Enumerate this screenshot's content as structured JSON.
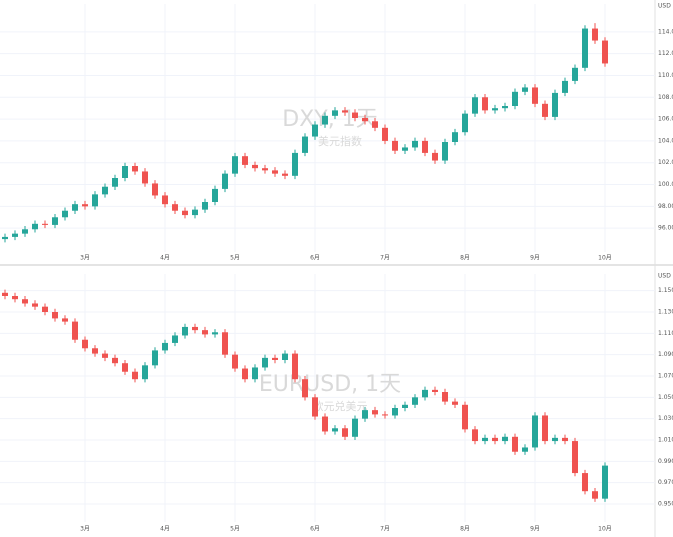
{
  "chart_data": [
    {
      "type": "candlestick",
      "title": "DXY, 1天",
      "subtitle": "美元指数",
      "currency": "USD",
      "up_color": "#26a69a",
      "down_color": "#ef5350",
      "grid": true,
      "ylim": [
        94,
        116
      ],
      "yticks": [
        {
          "value": 96,
          "label": "96.000"
        },
        {
          "value": 98,
          "label": "98.000"
        },
        {
          "value": 100,
          "label": "100.000"
        },
        {
          "value": 102,
          "label": "102.000"
        },
        {
          "value": 104,
          "label": "104.000"
        },
        {
          "value": 106,
          "label": "106.000"
        },
        {
          "value": 108,
          "label": "108.000"
        },
        {
          "value": 110,
          "label": "110.000"
        },
        {
          "value": 112,
          "label": "112.000"
        },
        {
          "value": 114,
          "label": "114.000"
        }
      ],
      "xticks": [
        {
          "value": 8,
          "label": "3月"
        },
        {
          "value": 16,
          "label": "4月"
        },
        {
          "value": 23,
          "label": "5月"
        },
        {
          "value": 31,
          "label": "6月"
        },
        {
          "value": 38,
          "label": "7月"
        },
        {
          "value": 46,
          "label": "8月"
        },
        {
          "value": 53,
          "label": "9月"
        },
        {
          "value": 60,
          "label": "10月"
        }
      ],
      "ohlc": [
        [
          95.0,
          95.5,
          94.7,
          95.2
        ],
        [
          95.2,
          95.8,
          94.9,
          95.5
        ],
        [
          95.5,
          96.2,
          95.2,
          95.9
        ],
        [
          95.9,
          96.7,
          95.6,
          96.4
        ],
        [
          96.4,
          96.7,
          96.0,
          96.3
        ],
        [
          96.3,
          97.3,
          96.0,
          97.0
        ],
        [
          97.0,
          97.9,
          96.7,
          97.6
        ],
        [
          97.6,
          98.5,
          97.3,
          98.2
        ],
        [
          98.2,
          98.5,
          97.7,
          98.0
        ],
        [
          98.0,
          99.4,
          97.7,
          99.1
        ],
        [
          99.1,
          100.1,
          98.8,
          99.8
        ],
        [
          99.8,
          100.9,
          99.5,
          100.6
        ],
        [
          100.6,
          102.0,
          100.3,
          101.7
        ],
        [
          101.7,
          102.0,
          100.9,
          101.2
        ],
        [
          101.2,
          101.5,
          99.8,
          100.1
        ],
        [
          100.1,
          100.4,
          98.7,
          99.0
        ],
        [
          99.0,
          99.3,
          97.9,
          98.2
        ],
        [
          98.2,
          98.5,
          97.3,
          97.6
        ],
        [
          97.6,
          97.9,
          96.9,
          97.2
        ],
        [
          97.2,
          98.0,
          96.9,
          97.7
        ],
        [
          97.7,
          98.7,
          97.4,
          98.4
        ],
        [
          98.4,
          99.9,
          98.1,
          99.6
        ],
        [
          99.6,
          101.3,
          99.3,
          101.0
        ],
        [
          101.0,
          102.9,
          100.7,
          102.6
        ],
        [
          102.6,
          102.9,
          101.5,
          101.8
        ],
        [
          101.8,
          102.1,
          101.2,
          101.5
        ],
        [
          101.5,
          101.8,
          101.0,
          101.3
        ],
        [
          101.3,
          101.6,
          100.7,
          101.0
        ],
        [
          101.0,
          101.3,
          100.5,
          100.8
        ],
        [
          100.8,
          103.2,
          100.5,
          102.9
        ],
        [
          102.9,
          104.7,
          102.6,
          104.4
        ],
        [
          104.4,
          105.8,
          104.1,
          105.5
        ],
        [
          105.5,
          106.6,
          105.2,
          106.3
        ],
        [
          106.3,
          107.1,
          106.0,
          106.8
        ],
        [
          106.8,
          107.1,
          106.3,
          106.6
        ],
        [
          106.6,
          106.9,
          105.8,
          106.1
        ],
        [
          106.1,
          106.4,
          105.5,
          105.8
        ],
        [
          105.8,
          106.1,
          104.9,
          105.2
        ],
        [
          105.2,
          105.5,
          103.7,
          104.0
        ],
        [
          104.0,
          104.3,
          102.8,
          103.1
        ],
        [
          103.1,
          103.7,
          102.8,
          103.4
        ],
        [
          103.4,
          104.3,
          103.1,
          104.0
        ],
        [
          104.0,
          104.3,
          102.6,
          102.9
        ],
        [
          102.9,
          103.2,
          101.9,
          102.2
        ],
        [
          102.2,
          104.2,
          101.9,
          103.9
        ],
        [
          103.9,
          105.1,
          103.6,
          104.8
        ],
        [
          104.8,
          106.8,
          104.5,
          106.5
        ],
        [
          106.5,
          108.3,
          106.2,
          108.0
        ],
        [
          108.0,
          108.3,
          106.5,
          106.8
        ],
        [
          106.8,
          107.3,
          106.5,
          107.0
        ],
        [
          107.0,
          107.5,
          106.7,
          107.2
        ],
        [
          107.2,
          108.8,
          106.9,
          108.5
        ],
        [
          108.5,
          109.2,
          108.2,
          108.9
        ],
        [
          108.9,
          109.2,
          107.1,
          107.4
        ],
        [
          107.4,
          107.7,
          105.9,
          106.2
        ],
        [
          106.2,
          108.7,
          105.9,
          108.4
        ],
        [
          108.4,
          109.8,
          108.1,
          109.5
        ],
        [
          109.5,
          111.0,
          109.2,
          110.7
        ],
        [
          110.7,
          114.6,
          110.4,
          114.3
        ],
        [
          114.3,
          114.8,
          112.9,
          113.2
        ],
        [
          113.2,
          113.5,
          110.8,
          111.1
        ]
      ]
    },
    {
      "type": "candlestick",
      "title": "EURUSD, 1天",
      "subtitle": "欧元兑美元",
      "currency": "USD",
      "up_color": "#26a69a",
      "down_color": "#ef5350",
      "grid": true,
      "ylim": [
        0.935,
        1.16
      ],
      "yticks": [
        {
          "value": 0.95,
          "label": "0.95000"
        },
        {
          "value": 0.97,
          "label": "0.97000"
        },
        {
          "value": 0.99,
          "label": "0.99000"
        },
        {
          "value": 1.01,
          "label": "1.01000"
        },
        {
          "value": 1.03,
          "label": "1.03000"
        },
        {
          "value": 1.05,
          "label": "1.05000"
        },
        {
          "value": 1.07,
          "label": "1.07000"
        },
        {
          "value": 1.09,
          "label": "1.09000"
        },
        {
          "value": 1.11,
          "label": "1.11000"
        },
        {
          "value": 1.13,
          "label": "1.13000"
        },
        {
          "value": 1.15,
          "label": "1.15000"
        }
      ],
      "xticks": [
        {
          "value": 8,
          "label": "3月"
        },
        {
          "value": 16,
          "label": "4月"
        },
        {
          "value": 23,
          "label": "5月"
        },
        {
          "value": 31,
          "label": "6月"
        },
        {
          "value": 38,
          "label": "7月"
        },
        {
          "value": 46,
          "label": "8月"
        },
        {
          "value": 53,
          "label": "9月"
        },
        {
          "value": 60,
          "label": "10月"
        }
      ],
      "ohlc": [
        [
          1.148,
          1.151,
          1.142,
          1.145
        ],
        [
          1.145,
          1.148,
          1.139,
          1.142
        ],
        [
          1.142,
          1.145,
          1.135,
          1.138
        ],
        [
          1.138,
          1.141,
          1.132,
          1.135
        ],
        [
          1.135,
          1.138,
          1.127,
          1.13
        ],
        [
          1.13,
          1.133,
          1.121,
          1.124
        ],
        [
          1.124,
          1.127,
          1.118,
          1.121
        ],
        [
          1.121,
          1.124,
          1.101,
          1.104
        ],
        [
          1.104,
          1.107,
          1.093,
          1.096
        ],
        [
          1.096,
          1.099,
          1.088,
          1.091
        ],
        [
          1.091,
          1.094,
          1.084,
          1.087
        ],
        [
          1.087,
          1.09,
          1.079,
          1.082
        ],
        [
          1.082,
          1.085,
          1.071,
          1.074
        ],
        [
          1.074,
          1.077,
          1.064,
          1.067
        ],
        [
          1.067,
          1.083,
          1.064,
          1.08
        ],
        [
          1.08,
          1.097,
          1.077,
          1.094
        ],
        [
          1.094,
          1.104,
          1.091,
          1.101
        ],
        [
          1.101,
          1.111,
          1.098,
          1.108
        ],
        [
          1.108,
          1.119,
          1.105,
          1.116
        ],
        [
          1.116,
          1.119,
          1.11,
          1.113
        ],
        [
          1.113,
          1.116,
          1.106,
          1.109
        ],
        [
          1.109,
          1.114,
          1.106,
          1.111
        ],
        [
          1.111,
          1.114,
          1.087,
          1.09
        ],
        [
          1.09,
          1.093,
          1.074,
          1.077
        ],
        [
          1.077,
          1.08,
          1.064,
          1.067
        ],
        [
          1.067,
          1.081,
          1.064,
          1.078
        ],
        [
          1.078,
          1.09,
          1.075,
          1.087
        ],
        [
          1.087,
          1.09,
          1.082,
          1.085
        ],
        [
          1.085,
          1.094,
          1.082,
          1.091
        ],
        [
          1.091,
          1.094,
          1.064,
          1.067
        ],
        [
          1.067,
          1.07,
          1.047,
          1.05
        ],
        [
          1.05,
          1.053,
          1.029,
          1.032
        ],
        [
          1.032,
          1.035,
          1.015,
          1.018
        ],
        [
          1.018,
          1.024,
          1.015,
          1.021
        ],
        [
          1.021,
          1.024,
          1.01,
          1.013
        ],
        [
          1.013,
          1.033,
          1.01,
          1.03
        ],
        [
          1.03,
          1.041,
          1.027,
          1.038
        ],
        [
          1.038,
          1.041,
          1.031,
          1.034
        ],
        [
          1.034,
          1.037,
          1.03,
          1.033
        ],
        [
          1.033,
          1.043,
          1.03,
          1.04
        ],
        [
          1.04,
          1.046,
          1.037,
          1.043
        ],
        [
          1.043,
          1.053,
          1.04,
          1.05
        ],
        [
          1.05,
          1.06,
          1.047,
          1.057
        ],
        [
          1.057,
          1.06,
          1.052,
          1.055
        ],
        [
          1.055,
          1.058,
          1.043,
          1.046
        ],
        [
          1.046,
          1.049,
          1.04,
          1.043
        ],
        [
          1.043,
          1.046,
          1.017,
          1.02
        ],
        [
          1.02,
          1.023,
          1.006,
          1.009
        ],
        [
          1.009,
          1.015,
          1.006,
          1.012
        ],
        [
          1.012,
          1.015,
          1.006,
          1.009
        ],
        [
          1.009,
          1.016,
          1.006,
          1.013
        ],
        [
          1.013,
          1.016,
          0.996,
          0.999
        ],
        [
          0.999,
          1.006,
          0.996,
          1.003
        ],
        [
          1.003,
          1.036,
          1.0,
          1.033
        ],
        [
          1.033,
          1.036,
          1.006,
          1.009
        ],
        [
          1.009,
          1.015,
          1.006,
          1.012
        ],
        [
          1.012,
          1.015,
          1.006,
          1.009
        ],
        [
          1.009,
          1.012,
          0.976,
          0.979
        ],
        [
          0.979,
          0.982,
          0.959,
          0.962
        ],
        [
          0.962,
          0.965,
          0.952,
          0.955
        ],
        [
          0.955,
          0.989,
          0.952,
          0.986
        ]
      ]
    }
  ]
}
